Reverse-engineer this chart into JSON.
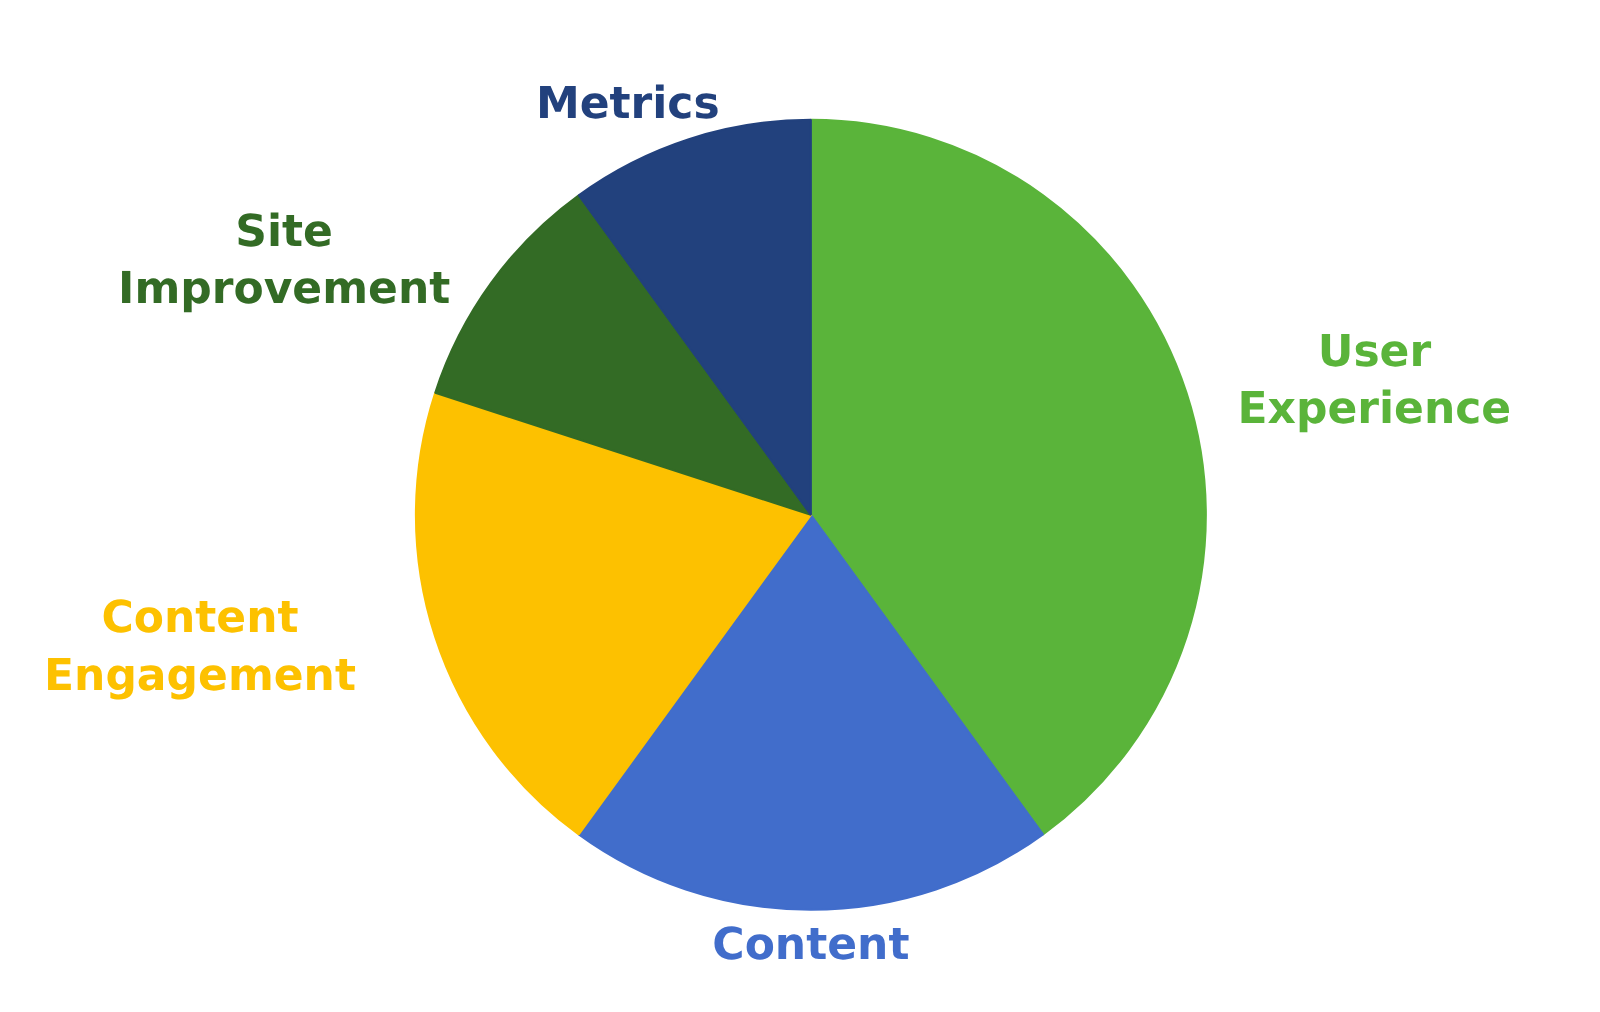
{
  "chart_data": {
    "type": "pie",
    "categories": [
      "User Experience",
      "Content",
      "Content Engagement",
      "Site Improvement",
      "Metrics"
    ],
    "values": [
      40,
      20,
      20,
      10,
      10
    ],
    "colors": [
      "#5ab43a",
      "#416dcb",
      "#fdc100",
      "#336b25",
      "#22417d"
    ]
  }
}
